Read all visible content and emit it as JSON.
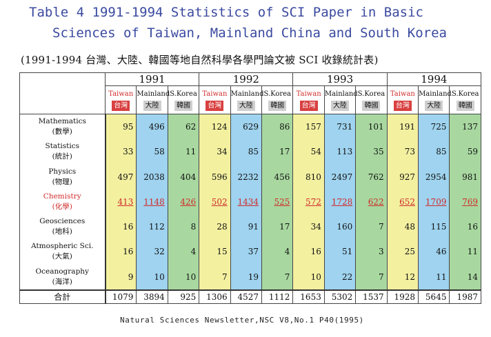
{
  "title_line1": "Table 4  1991-1994 Statistics of SCI Paper in Basic",
  "title_line2": "Sciences of Taiwan, Mainland China and South Korea",
  "subtitle": "(1991-1994 台灣、大陸、韓國等地自然科學各學門論文被 SCI 收錄統計表)",
  "years": [
    "1991",
    "1992",
    "1993",
    "1994"
  ],
  "countries": [
    {
      "en": "Taiwan",
      "zh": "台灣"
    },
    {
      "en": "Mainland",
      "zh": "大陸"
    },
    {
      "en": "S.Korea",
      "zh": "韓國"
    }
  ],
  "rows": [
    {
      "en": "Mathematics",
      "zh": "(數學)",
      "highlight": false,
      "values": [
        "95",
        "496",
        "62",
        "124",
        "629",
        "86",
        "157",
        "731",
        "101",
        "191",
        "725",
        "137"
      ]
    },
    {
      "en": "Statistics",
      "zh": "(統計)",
      "highlight": false,
      "values": [
        "33",
        "58",
        "11",
        "34",
        "85",
        "17",
        "54",
        "113",
        "35",
        "73",
        "85",
        "59"
      ]
    },
    {
      "en": "Physics",
      "zh": "(物理)",
      "highlight": false,
      "values": [
        "497",
        "2038",
        "404",
        "596",
        "2232",
        "456",
        "810",
        "2497",
        "762",
        "927",
        "2954",
        "981"
      ]
    },
    {
      "en": "Chemistry",
      "zh": "(化學)",
      "highlight": true,
      "values": [
        "413",
        "1148",
        "426",
        "502",
        "1434",
        "525",
        "572",
        "1728",
        "622",
        "652",
        "1709",
        "769"
      ]
    },
    {
      "en": "Geosciences",
      "zh": "(地科)",
      "highlight": false,
      "values": [
        "16",
        "112",
        "8",
        "28",
        "91",
        "17",
        "34",
        "160",
        "7",
        "48",
        "115",
        "16"
      ]
    },
    {
      "en": "Atmospheric Sci.",
      "zh": "(大氣)",
      "highlight": false,
      "values": [
        "16",
        "32",
        "4",
        "15",
        "37",
        "4",
        "16",
        "51",
        "3",
        "25",
        "46",
        "11"
      ]
    },
    {
      "en": "Oceanography",
      "zh": "(海洋)",
      "highlight": false,
      "values": [
        "9",
        "10",
        "10",
        "7",
        "19",
        "7",
        "10",
        "22",
        "7",
        "12",
        "11",
        "14"
      ]
    }
  ],
  "total": {
    "label": "合計",
    "values": [
      "1079",
      "3894",
      "925",
      "1306",
      "4527",
      "1112",
      "1653",
      "5302",
      "1537",
      "1928",
      "5645",
      "1987"
    ]
  },
  "footer": "Natural Sciences Newsletter,NSC V8,No.1 P40(1995)",
  "colors": {
    "taiwan_column": "#f3f0a0",
    "mainland_column": "#9fd3ef",
    "korea_column": "#a8d8a0",
    "highlight_text": "#d02a2a",
    "title_text": "#3a4aa0"
  }
}
